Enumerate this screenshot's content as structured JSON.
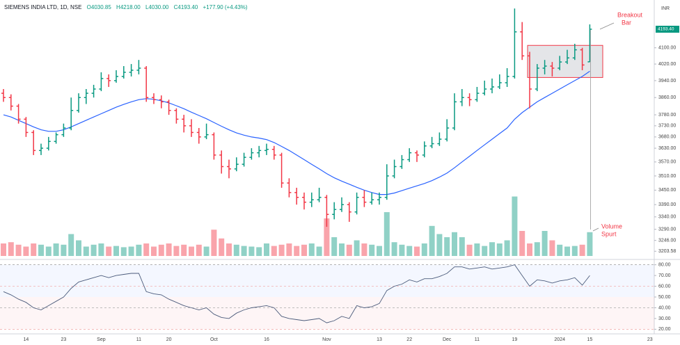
{
  "header": {
    "symbol": "SIEMENS INDIA LTD, 1D, NSE",
    "open": "O4030.85",
    "high": "H4218.00",
    "low": "L4030.00",
    "close": "C4193.40",
    "change": "+177.90 (+4.43%)"
  },
  "chart_data": [
    {
      "type": "ohlc",
      "currency": "INR",
      "log": true,
      "up_color": "#089981",
      "down_color": "#f23645",
      "ma_color": "#2962ff",
      "ylim": [
        3180,
        4330
      ],
      "yticks": [
        {
          "value": 4100,
          "label": "4100.00"
        },
        {
          "value": 4020,
          "label": "4020.00"
        },
        {
          "value": 3940,
          "label": "3940.00"
        },
        {
          "value": 3860,
          "label": "3860.00"
        },
        {
          "value": 3780,
          "label": "3780.00"
        },
        {
          "value": 3730,
          "label": "3730.00"
        },
        {
          "value": 3680,
          "label": "3680.00"
        },
        {
          "value": 3630,
          "label": "3630.00"
        },
        {
          "value": 3570,
          "label": "3570.00"
        },
        {
          "value": 3510,
          "label": "3510.00"
        },
        {
          "value": 3450,
          "label": "3450.00"
        },
        {
          "value": 3390,
          "label": "3390.00"
        },
        {
          "value": 3340,
          "label": "3340.00"
        },
        {
          "value": 3290,
          "label": "3290.00"
        },
        {
          "value": 3246,
          "label": "3246.00"
        },
        3203.58
      ],
      "last_label": "4193.40",
      "categories": [
        null,
        null,
        null,
        "14",
        null,
        null,
        null,
        null,
        "23",
        null,
        null,
        null,
        null,
        "Sep",
        null,
        null,
        null,
        null,
        "11",
        null,
        null,
        null,
        "20",
        null,
        null,
        null,
        null,
        null,
        "Oct",
        null,
        null,
        null,
        null,
        null,
        null,
        "16",
        null,
        null,
        null,
        null,
        null,
        null,
        null,
        "Nov",
        null,
        null,
        null,
        null,
        null,
        null,
        "13",
        null,
        null,
        null,
        "22",
        null,
        null,
        null,
        null,
        "Dec",
        null,
        null,
        null,
        "11",
        null,
        null,
        null,
        null,
        "19",
        null,
        null,
        null,
        null,
        null,
        "2024",
        null,
        null,
        null,
        "15",
        null,
        null,
        null,
        null,
        null,
        null,
        null,
        "23"
      ],
      "ohlc": [
        [
          3880,
          3900,
          3840,
          3860
        ],
        [
          3860,
          3875,
          3800,
          3820
        ],
        [
          3820,
          3830,
          3740,
          3760
        ],
        [
          3760,
          3770,
          3680,
          3700
        ],
        [
          3700,
          3710,
          3600,
          3620
        ],
        [
          3620,
          3650,
          3600,
          3630
        ],
        [
          3630,
          3680,
          3620,
          3660
        ],
        [
          3660,
          3700,
          3650,
          3690
        ],
        [
          3690,
          3740,
          3680,
          3720
        ],
        [
          3720,
          3860,
          3710,
          3800
        ],
        [
          3800,
          3880,
          3790,
          3860
        ],
        [
          3860,
          3900,
          3830,
          3880
        ],
        [
          3880,
          3920,
          3860,
          3900
        ],
        [
          3900,
          3980,
          3890,
          3950
        ],
        [
          3950,
          3970,
          3910,
          3940
        ],
        [
          3940,
          3990,
          3930,
          3960
        ],
        [
          3960,
          4010,
          3950,
          3980
        ],
        [
          3980,
          4020,
          3960,
          3990
        ],
        [
          3990,
          4040,
          3970,
          4000
        ],
        [
          4000,
          4010,
          3840,
          3860
        ],
        [
          3860,
          3880,
          3830,
          3850
        ],
        [
          3850,
          3870,
          3810,
          3840
        ],
        [
          3840,
          3850,
          3780,
          3800
        ],
        [
          3800,
          3810,
          3740,
          3760
        ],
        [
          3760,
          3780,
          3700,
          3730
        ],
        [
          3730,
          3760,
          3680,
          3700
        ],
        [
          3700,
          3720,
          3650,
          3680
        ],
        [
          3680,
          3740,
          3670,
          3690
        ],
        [
          3690,
          3700,
          3580,
          3600
        ],
        [
          3600,
          3620,
          3520,
          3550
        ],
        [
          3550,
          3580,
          3500,
          3540
        ],
        [
          3540,
          3590,
          3530,
          3560
        ],
        [
          3560,
          3610,
          3550,
          3590
        ],
        [
          3590,
          3630,
          3580,
          3610
        ],
        [
          3610,
          3640,
          3590,
          3620
        ],
        [
          3620,
          3650,
          3600,
          3625
        ],
        [
          3625,
          3640,
          3580,
          3600
        ],
        [
          3600,
          3610,
          3460,
          3480
        ],
        [
          3480,
          3500,
          3420,
          3440
        ],
        [
          3440,
          3460,
          3390,
          3420
        ],
        [
          3420,
          3440,
          3370,
          3400
        ],
        [
          3400,
          3440,
          3380,
          3410
        ],
        [
          3410,
          3460,
          3400,
          3420
        ],
        [
          3420,
          3430,
          3300,
          3350
        ],
        [
          3350,
          3400,
          3330,
          3370
        ],
        [
          3370,
          3420,
          3360,
          3390
        ],
        [
          3390,
          3400,
          3320,
          3360
        ],
        [
          3360,
          3440,
          3350,
          3420
        ],
        [
          3420,
          3450,
          3380,
          3400
        ],
        [
          3400,
          3440,
          3390,
          3410
        ],
        [
          3410,
          3440,
          3390,
          3420
        ],
        [
          3420,
          3560,
          3410,
          3510
        ],
        [
          3510,
          3580,
          3500,
          3550
        ],
        [
          3550,
          3600,
          3540,
          3580
        ],
        [
          3580,
          3630,
          3570,
          3610
        ],
        [
          3610,
          3620,
          3570,
          3600
        ],
        [
          3600,
          3660,
          3590,
          3640
        ],
        [
          3640,
          3680,
          3630,
          3650
        ],
        [
          3650,
          3700,
          3640,
          3670
        ],
        [
          3670,
          3760,
          3660,
          3720
        ],
        [
          3720,
          3880,
          3710,
          3840
        ],
        [
          3840,
          3900,
          3820,
          3860
        ],
        [
          3860,
          3880,
          3820,
          3850
        ],
        [
          3850,
          3910,
          3840,
          3880
        ],
        [
          3880,
          3940,
          3870,
          3900
        ],
        [
          3900,
          3950,
          3880,
          3910
        ],
        [
          3910,
          3970,
          3900,
          3930
        ],
        [
          3930,
          4000,
          3910,
          3960
        ],
        [
          3960,
          4300,
          3950,
          4180
        ],
        [
          4180,
          4230,
          4040,
          4060
        ],
        [
          4060,
          4080,
          3810,
          3900
        ],
        [
          3900,
          4020,
          3890,
          4000
        ],
        [
          4000,
          4040,
          3970,
          4010
        ],
        [
          4010,
          4030,
          3960,
          4000
        ],
        [
          4000,
          4060,
          3990,
          4030
        ],
        [
          4030,
          4090,
          4020,
          4050
        ],
        [
          4050,
          4120,
          4040,
          4090
        ],
        [
          4090,
          4100,
          3990,
          4015.5
        ],
        [
          4030.85,
          4218,
          4030,
          4193.4
        ],
        null,
        null,
        null,
        null,
        null,
        null,
        null,
        null
      ],
      "ma": [
        3780,
        3770,
        3755,
        3740,
        3725,
        3712,
        3705,
        3705,
        3712,
        3725,
        3740,
        3755,
        3770,
        3785,
        3800,
        3815,
        3828,
        3840,
        3850,
        3855,
        3852,
        3845,
        3835,
        3822,
        3808,
        3792,
        3777,
        3762,
        3745,
        3728,
        3712,
        3698,
        3688,
        3680,
        3675,
        3668,
        3655,
        3638,
        3620,
        3600,
        3580,
        3560,
        3540,
        3520,
        3502,
        3488,
        3475,
        3462,
        3450,
        3440,
        3432,
        3432,
        3438,
        3448,
        3458,
        3468,
        3478,
        3490,
        3505,
        3522,
        3545,
        3570,
        3595,
        3620,
        3645,
        3670,
        3695,
        3720,
        3760,
        3790,
        3815,
        3840,
        3860,
        3880,
        3900,
        3920,
        3940,
        3960,
        3985,
        null,
        null,
        null,
        null,
        null,
        null,
        null,
        null
      ],
      "box": {
        "low": 3955,
        "high": 4112,
        "from": 70,
        "to": 80
      },
      "annotations": [
        {
          "lines": [
            "Breakout",
            "Bar"
          ],
          "color": "#f23645"
        },
        {
          "lines": [
            "Volume",
            "Spurt"
          ],
          "color": "#f23645"
        }
      ]
    },
    {
      "type": "bar",
      "ylim": [
        0,
        100
      ],
      "values": [
        20,
        22,
        18,
        15,
        20,
        18,
        15,
        20,
        18,
        35,
        25,
        15,
        18,
        20,
        15,
        16,
        14,
        15,
        18,
        20,
        15,
        18,
        20,
        16,
        18,
        15,
        18,
        15,
        42,
        28,
        20,
        18,
        16,
        15,
        14,
        20,
        16,
        18,
        20,
        16,
        18,
        20,
        15,
        60,
        30,
        20,
        18,
        25,
        20,
        18,
        16,
        70,
        22,
        18,
        16,
        15,
        20,
        48,
        35,
        30,
        38,
        30,
        18,
        20,
        16,
        22,
        20,
        25,
        95,
        40,
        20,
        22,
        40,
        25,
        18,
        15,
        16,
        18,
        38,
        null,
        null,
        null,
        null,
        null,
        null,
        null,
        null
      ]
    },
    {
      "type": "line",
      "color": "#4a5a7a",
      "ylim": [
        17,
        83
      ],
      "yticks": [
        {
          "value": 80,
          "label": "80.00"
        },
        {
          "value": 70,
          "label": "70.00"
        },
        {
          "value": 60,
          "label": "60.00"
        },
        {
          "value": 50,
          "label": "50.00"
        },
        {
          "value": 40,
          "label": "40.00"
        },
        {
          "value": 30,
          "label": "30.00"
        },
        {
          "value": 20,
          "label": "20.00"
        }
      ],
      "values": [
        55,
        52,
        48,
        45,
        40,
        38,
        42,
        46,
        50,
        58,
        64,
        66,
        68,
        70,
        68,
        70,
        71,
        72,
        72,
        55,
        53,
        52,
        48,
        45,
        42,
        40,
        38,
        40,
        34,
        31,
        30,
        35,
        38,
        40,
        41,
        42,
        40,
        32,
        30,
        29,
        28,
        29,
        30,
        26,
        28,
        32,
        30,
        42,
        40,
        41,
        44,
        56,
        60,
        62,
        66,
        64,
        67,
        67,
        69,
        72,
        78,
        78,
        76,
        77,
        78,
        76,
        77,
        78,
        80,
        70,
        60,
        66,
        65,
        63,
        65,
        66,
        68,
        61,
        70,
        null,
        null,
        null,
        null,
        null,
        null,
        null,
        null
      ]
    }
  ]
}
